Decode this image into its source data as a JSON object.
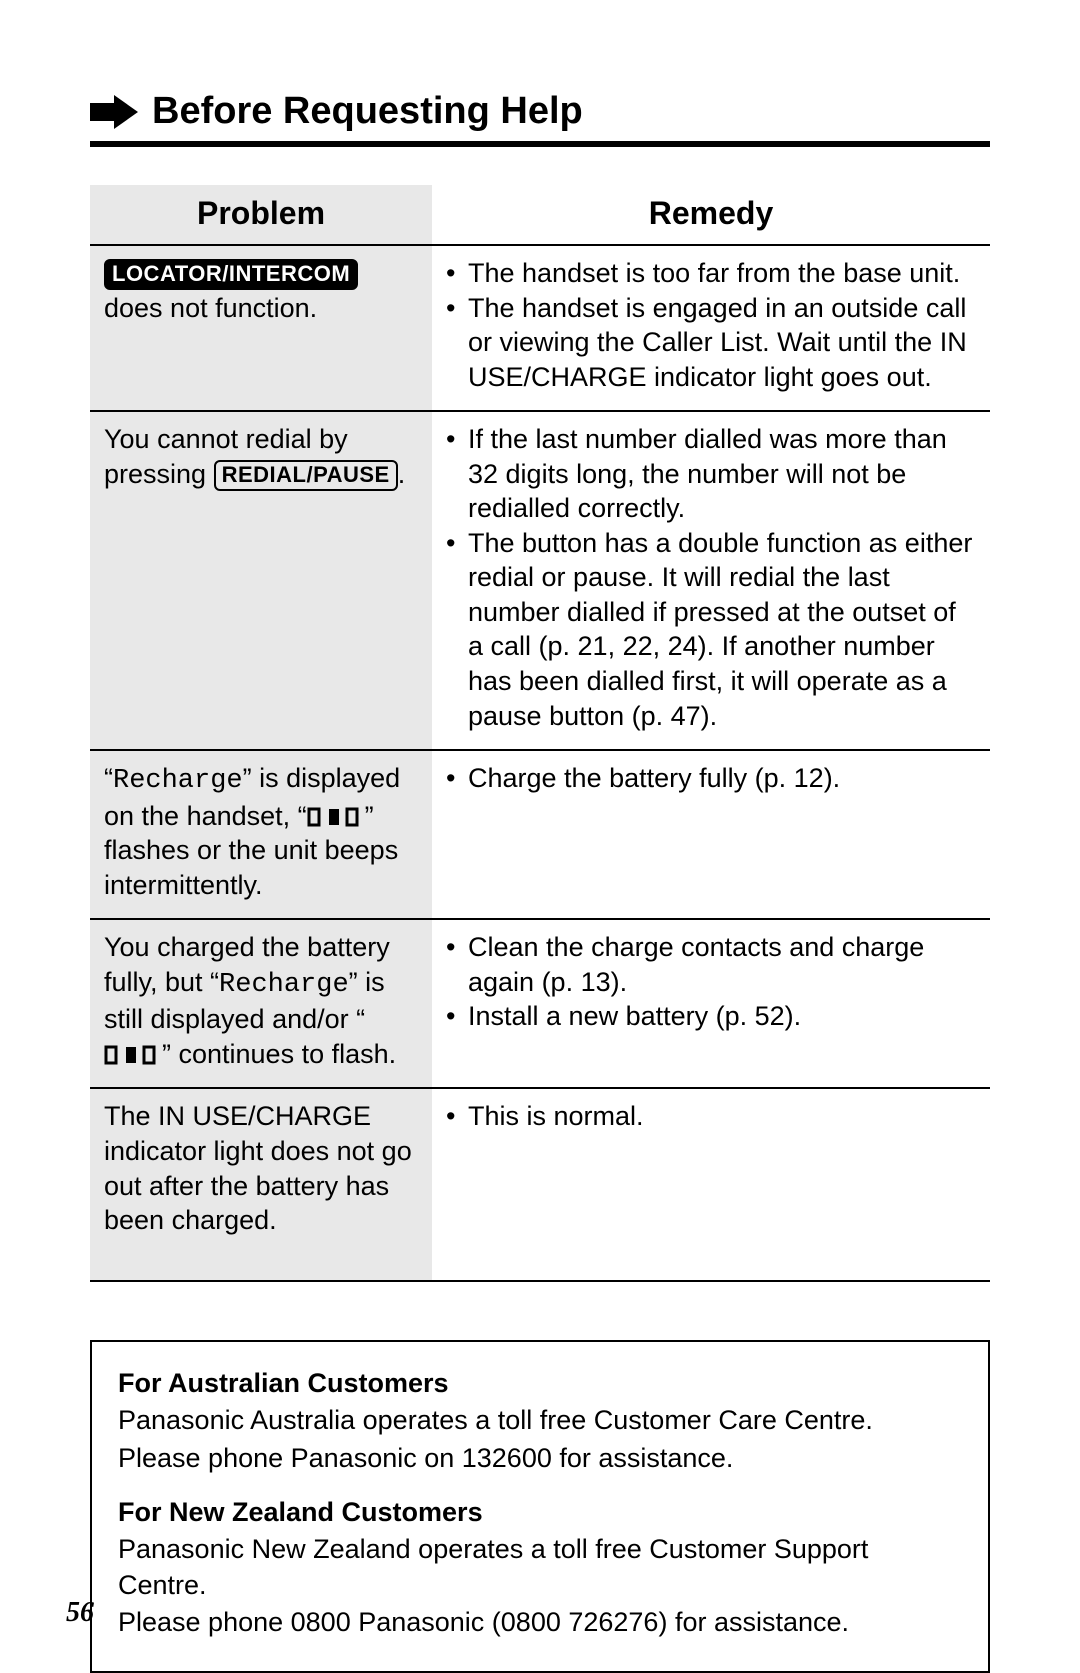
{
  "page": {
    "title": "Before Requesting Help",
    "number": "56",
    "background": "#ffffff",
    "text_color": "#000000",
    "rule_color": "#000000",
    "problem_bg": "#e8e8e8"
  },
  "table": {
    "columns": {
      "problem": "Problem",
      "remedy": "Remedy"
    },
    "col_widths": [
      "38%",
      "62%"
    ],
    "header_fontsize": 32,
    "body_fontsize": 27,
    "rows": [
      {
        "problem": {
          "button_inv": "LOCATOR/INTERCOM",
          "after": " does not function."
        },
        "remedy": [
          "The handset is too far from the base unit.",
          "The handset is engaged in an outside call or viewing the Caller List. Wait until the IN USE/CHARGE indicator light goes out."
        ]
      },
      {
        "problem": {
          "before": "You cannot redial by pressing ",
          "button": "REDIAL/PAUSE",
          "after": "."
        },
        "remedy": [
          "If the last number dialled was more than 32 digits long, the number will not be redialled correctly.",
          "The button has a double function as either redial or pause. It will redial the last number dialled if pressed at the outset of a call (p. 21, 22, 24). If another number has been dialled first, it will operate as a pause button (p. 47)."
        ]
      },
      {
        "problem": {
          "segments": [
            {
              "t": "“"
            },
            {
              "t": "Recharge",
              "mono": true
            },
            {
              "t": "” is displayed on the handset, “"
            },
            {
              "batt": true
            },
            {
              "t": "” flashes or the unit beeps intermittently."
            }
          ]
        },
        "remedy": [
          "Charge the battery fully (p. 12)."
        ]
      },
      {
        "problem": {
          "segments": [
            {
              "t": "You charged the battery fully, but “"
            },
            {
              "t": "Recharge",
              "mono": true
            },
            {
              "t": "” is still displayed and/or “"
            },
            {
              "batt": true
            },
            {
              "t": "” continues to flash."
            }
          ]
        },
        "remedy": [
          "Clean the charge contacts and charge again (p. 13).",
          "Install a new battery (p. 52)."
        ]
      },
      {
        "problem": {
          "plain": "The IN USE/CHARGE indicator light does not go out after the battery has been charged."
        },
        "remedy": [
          "This is normal."
        ]
      }
    ]
  },
  "info_box": {
    "aus_title": "For Australian Customers",
    "aus_line1": "Panasonic Australia operates a toll free Customer Care Centre.",
    "aus_line2": "Please phone Panasonic on 132600 for assistance.",
    "nz_title": "For New Zealand Customers",
    "nz_line1": "Panasonic New Zealand operates a toll free Customer Support Centre.",
    "nz_line2": "Please phone 0800 Panasonic (0800 726276) for assistance."
  },
  "icons": {
    "arrow_color": "#000000",
    "battery": {
      "width": 58,
      "height": 20
    }
  }
}
